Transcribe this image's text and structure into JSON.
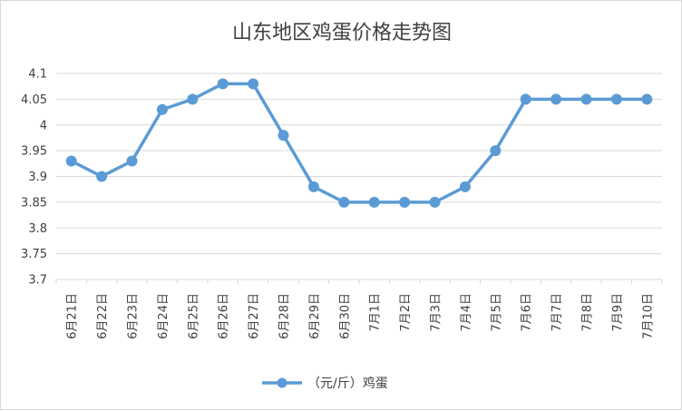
{
  "chart_data": {
    "type": "line",
    "title": "山东地区鸡蛋价格走势图",
    "categories": [
      "6月21日",
      "6月22日",
      "6月23日",
      "6月24日",
      "6月25日",
      "6月26日",
      "6月27日",
      "6月28日",
      "6月29日",
      "6月30日",
      "7月1日",
      "7月2日",
      "7月3日",
      "7月4日",
      "7月5日",
      "7月6日",
      "7月7日",
      "7月8日",
      "7月9日",
      "7月10日"
    ],
    "series": [
      {
        "name": "（元/斤）鸡蛋",
        "values": [
          3.93,
          3.9,
          3.93,
          4.03,
          4.05,
          4.08,
          4.08,
          3.98,
          3.88,
          3.85,
          3.85,
          3.85,
          3.85,
          3.88,
          3.95,
          4.05,
          4.05,
          4.05,
          4.05,
          4.05
        ]
      }
    ],
    "ylim": [
      3.7,
      4.1
    ],
    "yticks": [
      "3.7",
      "3.75",
      "3.8",
      "3.85",
      "3.9",
      "3.95",
      "4",
      "4.05",
      "4.1"
    ],
    "xlabel": "",
    "ylabel": "",
    "grid": true,
    "legend_position": "bottom",
    "colors": {
      "series": "#5b9bd5",
      "grid": "#d9d9d9",
      "text": "#404040"
    }
  }
}
